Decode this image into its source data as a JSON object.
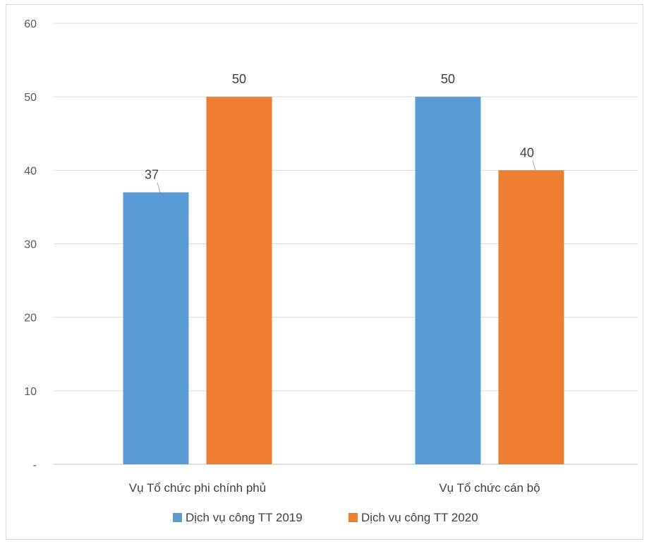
{
  "chart_data": {
    "type": "bar",
    "categories": [
      "Vụ Tổ chức phi chính phủ",
      "Vụ Tổ chức cán bộ"
    ],
    "series": [
      {
        "name": "Dịch vụ công TT 2019",
        "values": [
          37,
          50
        ],
        "color": "#5b9bd5"
      },
      {
        "name": "Dịch vụ công TT 2020",
        "values": [
          50,
          40
        ],
        "color": "#ed7d31"
      }
    ],
    "yticks": [
      "-",
      "10",
      "20",
      "30",
      "40",
      "50",
      "60"
    ],
    "ylim": [
      0,
      60
    ],
    "grid": true,
    "legend_position": "bottom"
  }
}
